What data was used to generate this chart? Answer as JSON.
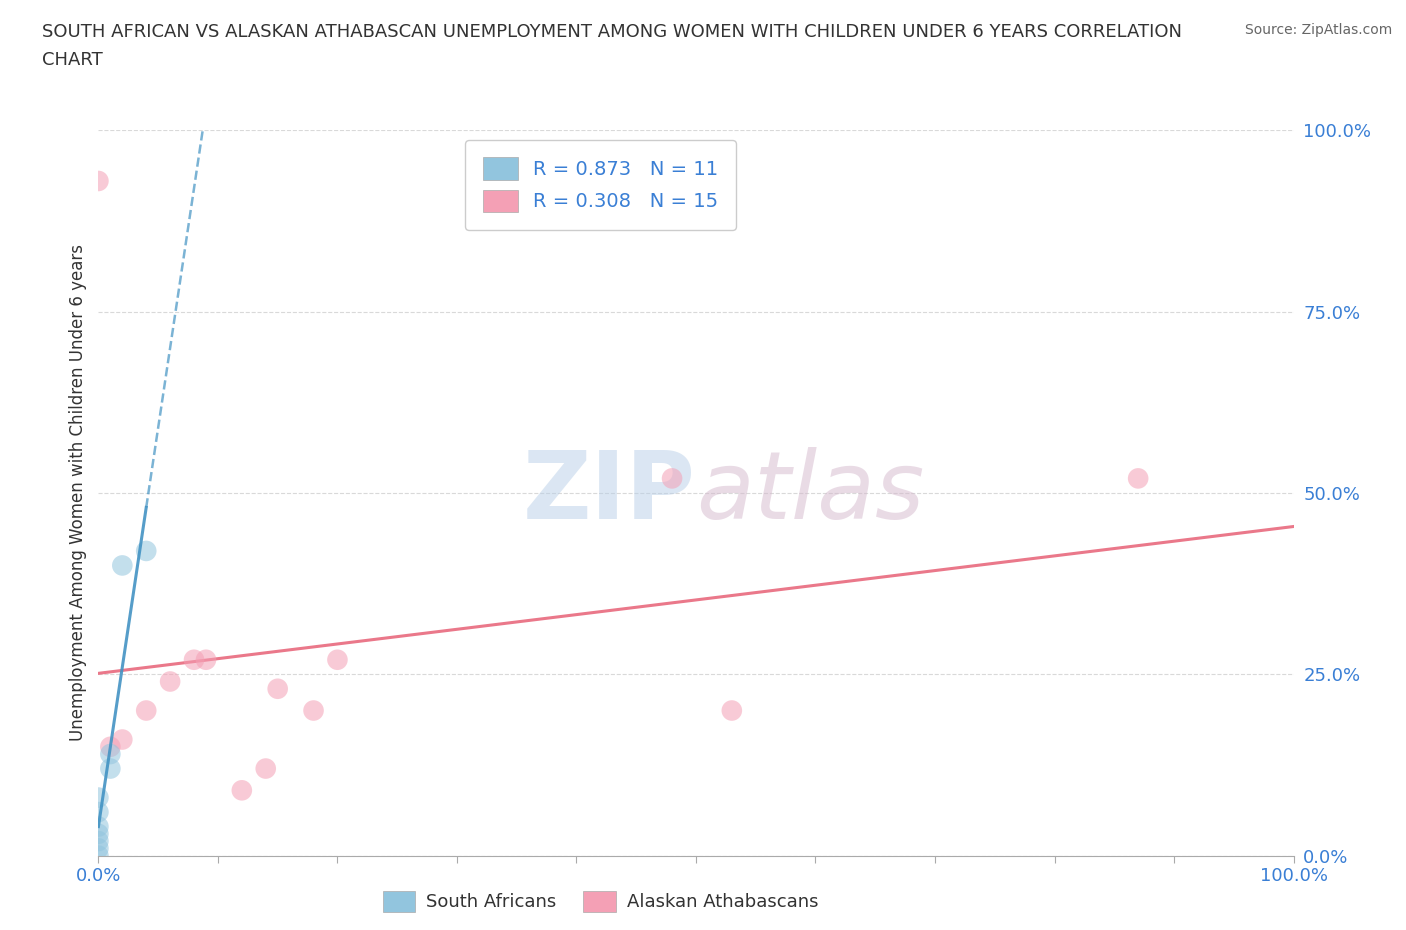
{
  "title_line1": "SOUTH AFRICAN VS ALASKAN ATHABASCAN UNEMPLOYMENT AMONG WOMEN WITH CHILDREN UNDER 6 YEARS CORRELATION",
  "title_line2": "CHART",
  "source": "Source: ZipAtlas.com",
  "ylabel": "Unemployment Among Women with Children Under 6 years",
  "xlim": [
    0,
    1.0
  ],
  "ylim": [
    0,
    1.0
  ],
  "xticks": [
    0.0,
    0.1,
    0.2,
    0.3,
    0.4,
    0.5,
    0.6,
    0.7,
    0.8,
    0.9,
    1.0
  ],
  "yticks": [
    0.0,
    0.25,
    0.5,
    0.75,
    1.0
  ],
  "xtick_label_positions": [
    0.0,
    1.0
  ],
  "xticklabels_shown": [
    "0.0%",
    "100.0%"
  ],
  "yticklabels": [
    "0.0%",
    "25.0%",
    "50.0%",
    "75.0%",
    "100.0%"
  ],
  "blue_color": "#92c5de",
  "pink_color": "#f4a0b5",
  "blue_line_color": "#4393c3",
  "pink_line_color": "#e8697d",
  "watermark_part1": "ZIP",
  "watermark_part2": "atlas",
  "legend_R1": "R = 0.873",
  "legend_N1": "N = 11",
  "legend_R2": "R = 0.308",
  "legend_N2": "N = 15",
  "legend_label1": "South Africans",
  "legend_label2": "Alaskan Athabascans",
  "south_african_x": [
    0.0,
    0.0,
    0.0,
    0.0,
    0.0,
    0.0,
    0.0,
    0.01,
    0.01,
    0.02,
    0.04
  ],
  "south_african_y": [
    0.0,
    0.01,
    0.02,
    0.03,
    0.04,
    0.06,
    0.08,
    0.12,
    0.14,
    0.4,
    0.42
  ],
  "alaskan_x": [
    0.0,
    0.01,
    0.02,
    0.04,
    0.06,
    0.08,
    0.09,
    0.12,
    0.14,
    0.15,
    0.18,
    0.2,
    0.48,
    0.53,
    0.87
  ],
  "alaskan_y": [
    0.93,
    0.15,
    0.16,
    0.2,
    0.24,
    0.27,
    0.27,
    0.09,
    0.12,
    0.23,
    0.2,
    0.27,
    0.52,
    0.2,
    0.52
  ],
  "background_color": "#ffffff",
  "grid_color": "#d0d0d0"
}
